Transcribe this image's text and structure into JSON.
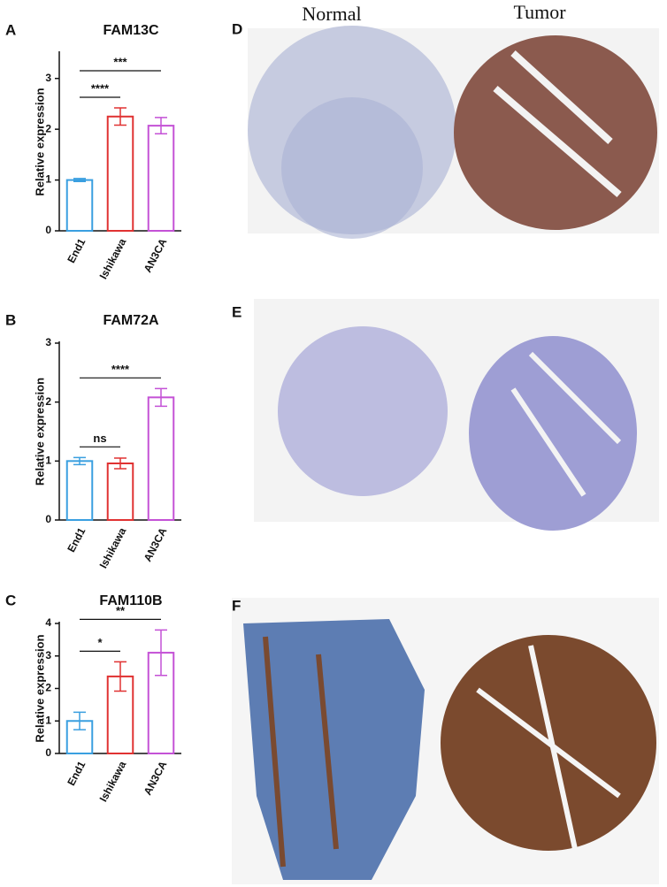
{
  "chart_data": [
    {
      "type": "bar",
      "panel": "A",
      "title": "FAM13C",
      "ylabel": "Relative expression",
      "categories": [
        "End1",
        "Ishikawa",
        "AN3CA"
      ],
      "values": [
        1.0,
        2.25,
        2.07
      ],
      "errors": [
        0.03,
        0.17,
        0.16
      ],
      "colors": [
        "#3a9fe0",
        "#e03232",
        "#c452d6"
      ],
      "ylim": [
        0,
        3.5
      ],
      "yticks": [
        0,
        1,
        2,
        3
      ],
      "significance": [
        {
          "label": "****",
          "groups": [
            "End1",
            "Ishikawa"
          ]
        },
        {
          "label": "***",
          "groups": [
            "End1",
            "AN3CA"
          ]
        }
      ]
    },
    {
      "type": "bar",
      "panel": "B",
      "title": "FAM72A",
      "ylabel": "Relative expression",
      "categories": [
        "End1",
        "Ishikawa",
        "AN3CA"
      ],
      "values": [
        1.0,
        0.96,
        2.08
      ],
      "errors": [
        0.06,
        0.09,
        0.15
      ],
      "colors": [
        "#3a9fe0",
        "#e03232",
        "#c452d6"
      ],
      "ylim": [
        0,
        3
      ],
      "yticks": [
        0,
        1,
        2,
        3
      ],
      "significance": [
        {
          "label": "ns",
          "groups": [
            "End1",
            "Ishikawa"
          ]
        },
        {
          "label": "****",
          "groups": [
            "End1",
            "AN3CA"
          ]
        }
      ]
    },
    {
      "type": "bar",
      "panel": "C",
      "title": "FAM110B",
      "ylabel": "Relative expression",
      "categories": [
        "End1",
        "Ishikawa",
        "AN3CA"
      ],
      "values": [
        1.0,
        2.37,
        3.1
      ],
      "errors": [
        0.27,
        0.45,
        0.7
      ],
      "colors": [
        "#3a9fe0",
        "#e03232",
        "#c452d6"
      ],
      "ylim": [
        0,
        4
      ],
      "yticks": [
        0,
        1,
        2,
        3,
        4
      ],
      "significance": [
        {
          "label": "*",
          "groups": [
            "End1",
            "Ishikawa"
          ]
        },
        {
          "label": "**",
          "groups": [
            "End1",
            "AN3CA"
          ]
        }
      ]
    }
  ],
  "images": {
    "columns": [
      "Normal",
      "Tumor"
    ],
    "panels": [
      "D",
      "E",
      "F"
    ]
  }
}
